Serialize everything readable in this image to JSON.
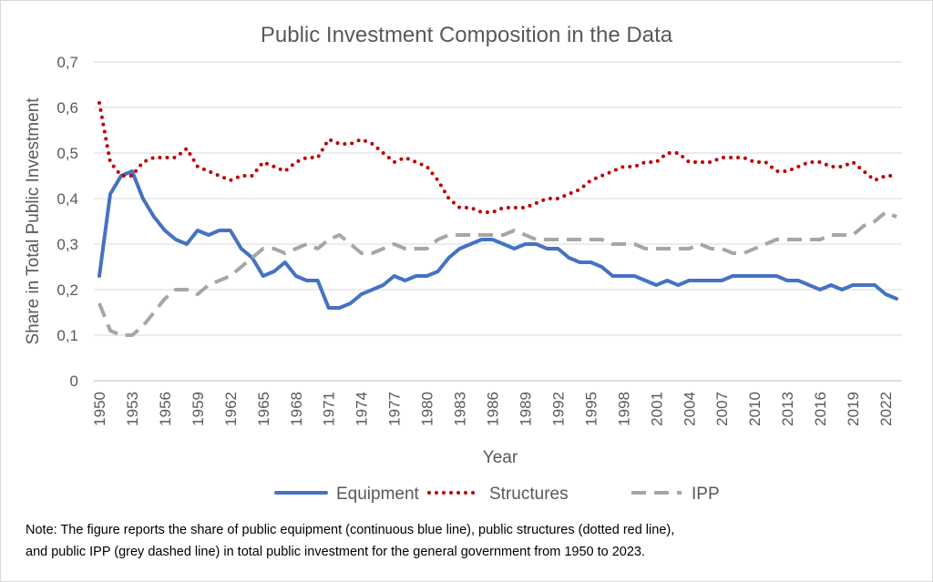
{
  "chart_data": {
    "type": "line",
    "title": "Public Investment Composition in the Data",
    "xlabel": "Year",
    "ylabel": "Share in Total Public Investment",
    "ylim": [
      0,
      0.7
    ],
    "grid": true,
    "legend": "bottom",
    "yticks": [
      "0",
      "0,1",
      "0,2",
      "0,3",
      "0,4",
      "0,5",
      "0,6",
      "0,7"
    ],
    "xtick_labels": [
      "1950",
      "1953",
      "1956",
      "1959",
      "1962",
      "1965",
      "1968",
      "1971",
      "1974",
      "1977",
      "1980",
      "1983",
      "1986",
      "1989",
      "1992",
      "1995",
      "1998",
      "2001",
      "2004",
      "2007",
      "2010",
      "2013",
      "2016",
      "2019",
      "2022"
    ],
    "x": [
      1950,
      1951,
      1952,
      1953,
      1954,
      1955,
      1956,
      1957,
      1958,
      1959,
      1960,
      1961,
      1962,
      1963,
      1964,
      1965,
      1966,
      1967,
      1968,
      1969,
      1970,
      1971,
      1972,
      1973,
      1974,
      1975,
      1976,
      1977,
      1978,
      1979,
      1980,
      1981,
      1982,
      1983,
      1984,
      1985,
      1986,
      1987,
      1988,
      1989,
      1990,
      1991,
      1992,
      1993,
      1994,
      1995,
      1996,
      1997,
      1998,
      1999,
      2000,
      2001,
      2002,
      2003,
      2004,
      2005,
      2006,
      2007,
      2008,
      2009,
      2010,
      2011,
      2012,
      2013,
      2014,
      2015,
      2016,
      2017,
      2018,
      2019,
      2020,
      2021,
      2022,
      2023
    ],
    "series": [
      {
        "name": "Equipment",
        "color": "#4472c4",
        "style": "solid",
        "values": [
          0.23,
          0.41,
          0.45,
          0.46,
          0.4,
          0.36,
          0.33,
          0.31,
          0.3,
          0.33,
          0.32,
          0.33,
          0.33,
          0.29,
          0.27,
          0.23,
          0.24,
          0.26,
          0.23,
          0.22,
          0.22,
          0.16,
          0.16,
          0.17,
          0.19,
          0.2,
          0.21,
          0.23,
          0.22,
          0.23,
          0.23,
          0.24,
          0.27,
          0.29,
          0.3,
          0.31,
          0.31,
          0.3,
          0.29,
          0.3,
          0.3,
          0.29,
          0.29,
          0.27,
          0.26,
          0.26,
          0.25,
          0.23,
          0.23,
          0.23,
          0.22,
          0.21,
          0.22,
          0.21,
          0.22,
          0.22,
          0.22,
          0.22,
          0.23,
          0.23,
          0.23,
          0.23,
          0.23,
          0.22,
          0.22,
          0.21,
          0.2,
          0.21,
          0.2,
          0.21,
          0.21,
          0.21,
          0.19,
          0.18
        ]
      },
      {
        "name": "Structures",
        "color": "#c00000",
        "style": "dotted",
        "values": [
          0.61,
          0.48,
          0.45,
          0.45,
          0.48,
          0.49,
          0.49,
          0.49,
          0.51,
          0.47,
          0.46,
          0.45,
          0.44,
          0.45,
          0.45,
          0.48,
          0.47,
          0.46,
          0.48,
          0.49,
          0.49,
          0.53,
          0.52,
          0.52,
          0.53,
          0.52,
          0.5,
          0.48,
          0.49,
          0.48,
          0.47,
          0.44,
          0.4,
          0.38,
          0.38,
          0.37,
          0.37,
          0.38,
          0.38,
          0.38,
          0.39,
          0.4,
          0.4,
          0.41,
          0.42,
          0.44,
          0.45,
          0.46,
          0.47,
          0.47,
          0.48,
          0.48,
          0.5,
          0.5,
          0.48,
          0.48,
          0.48,
          0.49,
          0.49,
          0.49,
          0.48,
          0.48,
          0.46,
          0.46,
          0.47,
          0.48,
          0.48,
          0.47,
          0.47,
          0.48,
          0.46,
          0.44,
          0.45,
          0.45
        ]
      },
      {
        "name": "IPP",
        "color": "#a6a6a6",
        "style": "dashed",
        "values": [
          0.17,
          0.11,
          0.1,
          0.1,
          0.12,
          0.15,
          0.18,
          0.2,
          0.2,
          0.19,
          0.21,
          0.22,
          0.23,
          0.25,
          0.27,
          0.29,
          0.29,
          0.28,
          0.29,
          0.3,
          0.29,
          0.31,
          0.32,
          0.3,
          0.28,
          0.28,
          0.29,
          0.3,
          0.29,
          0.29,
          0.29,
          0.31,
          0.32,
          0.32,
          0.32,
          0.32,
          0.32,
          0.32,
          0.33,
          0.32,
          0.31,
          0.31,
          0.31,
          0.31,
          0.31,
          0.31,
          0.31,
          0.3,
          0.3,
          0.3,
          0.29,
          0.29,
          0.29,
          0.29,
          0.29,
          0.3,
          0.29,
          0.29,
          0.28,
          0.28,
          0.29,
          0.3,
          0.31,
          0.31,
          0.31,
          0.31,
          0.31,
          0.32,
          0.32,
          0.32,
          0.34,
          0.35,
          0.37,
          0.36
        ]
      }
    ]
  },
  "note": {
    "line1": "Note: The figure reports the share of public equipment (continuous blue line), public structures (dotted red line),",
    "line2": "and public IPP (grey dashed line) in total public investment for the general government from 1950 to 2023."
  }
}
